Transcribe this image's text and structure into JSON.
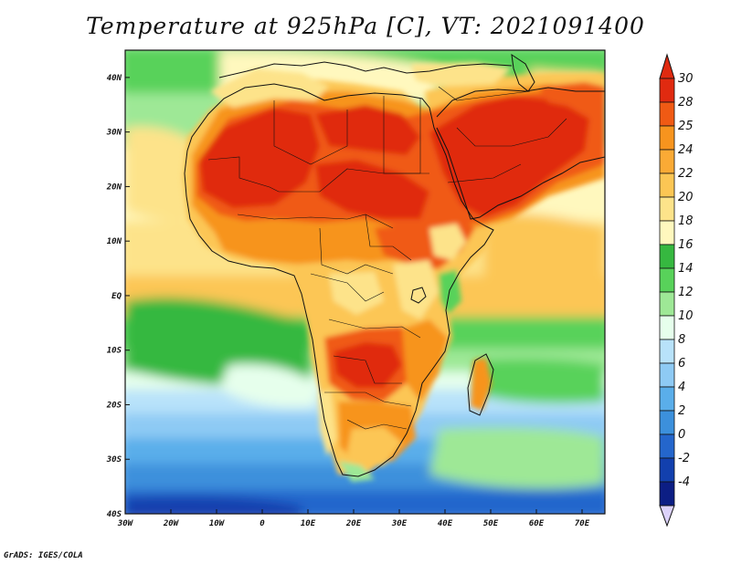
{
  "title": "Temperature at 925hPa [C], VT: 2021091400",
  "credit": "GrADS: IGES/COLA",
  "map": {
    "lon_range": [
      -30,
      75
    ],
    "lat_range": [
      -40,
      45
    ],
    "x_ticks": [
      "30W",
      "20W",
      "10W",
      "0",
      "10E",
      "20E",
      "30E",
      "40E",
      "50E",
      "60E",
      "70E"
    ],
    "y_ticks": [
      "40S",
      "30S",
      "20S",
      "10S",
      "EQ",
      "10N",
      "20N",
      "30N",
      "40N"
    ]
  },
  "colorbar": {
    "labels": [
      "30",
      "28",
      "25",
      "24",
      "22",
      "20",
      "18",
      "16",
      "14",
      "12",
      "10",
      "8",
      "6",
      "4",
      "2",
      "0",
      "-2",
      "-4"
    ],
    "colors": {
      "c30": "#e02a10",
      "c28": "#f05a14",
      "c25": "#f7941e",
      "c24": "#faaa35",
      "c22": "#fcc654",
      "c20": "#fde38a",
      "c18": "#fff8be",
      "c16": "#36b840",
      "c14": "#58d25a",
      "c12": "#9ee896",
      "c10": "#e6ffec",
      "c8": "#b8e2fa",
      "c6": "#8ecaf4",
      "c4": "#5aaeea",
      "c2": "#3c90dc",
      "c0": "#2466cc",
      "cm2": "#1240ae",
      "cm4": "#0c1e84",
      "below": "#dcd2fa"
    }
  }
}
